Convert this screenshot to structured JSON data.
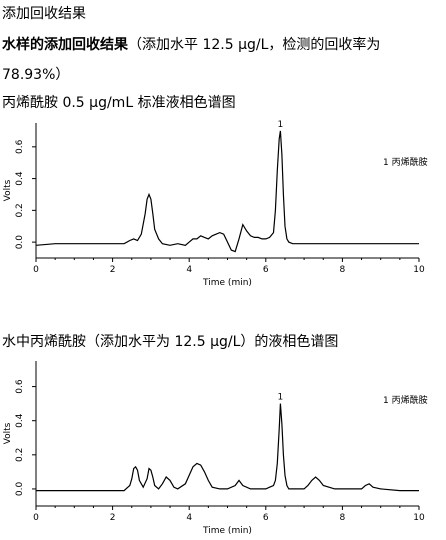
{
  "header": "添加回收结果",
  "summary": {
    "bold": "水样的添加回收结果",
    "rest": "（添加水平 12.5 μg/L，检测的回收率为",
    "line2": "78.93%）"
  },
  "captions": {
    "chart1": "丙烯酰胺 0.5 μg/mL 标准液相色谱图",
    "chart2": "水中丙烯酰胺（添加水平为 12.5 μg/L）的液相色谱图"
  },
  "chart_data": [
    {
      "type": "line",
      "xlabel": "Time (min)",
      "ylabel": "Volts",
      "xlim": [
        0,
        10
      ],
      "ylim": [
        -0.1,
        0.75
      ],
      "x_ticks": [
        0,
        2,
        4,
        6,
        8,
        10
      ],
      "y_ticks": [
        0.0,
        0.2,
        0.4,
        0.6
      ],
      "legend": "1  丙烯酰胺",
      "peak_label": "1",
      "peak": {
        "x": 6.38,
        "y": 0.7
      },
      "series": [
        {
          "x": [
            0,
            0.5,
            1,
            1.5,
            2,
            2.3,
            2.45,
            2.55,
            2.65,
            2.75,
            2.85,
            2.9,
            2.95,
            3.0,
            3.05,
            3.1,
            3.2,
            3.3,
            3.5,
            3.7,
            3.9,
            4.0,
            4.1,
            4.2,
            4.3,
            4.4,
            4.5,
            4.6,
            4.7,
            4.8,
            4.9,
            5.0,
            5.1,
            5.2,
            5.3,
            5.4,
            5.5,
            5.6,
            5.7,
            5.8,
            5.9,
            6.0,
            6.1,
            6.2,
            6.25,
            6.3,
            6.35,
            6.38,
            6.42,
            6.46,
            6.5,
            6.55,
            6.6,
            6.7,
            6.8,
            7,
            7.5,
            8,
            8.5,
            9,
            9.5,
            10
          ],
          "y": [
            -0.02,
            -0.01,
            -0.01,
            -0.01,
            -0.01,
            -0.01,
            0.01,
            0.02,
            0.01,
            0.05,
            0.18,
            0.27,
            0.3,
            0.27,
            0.18,
            0.08,
            0.02,
            -0.01,
            -0.02,
            -0.01,
            -0.02,
            0.0,
            0.02,
            0.02,
            0.04,
            0.03,
            0.02,
            0.04,
            0.05,
            0.06,
            0.05,
            0.0,
            -0.05,
            -0.06,
            0.02,
            0.11,
            0.07,
            0.04,
            0.03,
            0.03,
            0.02,
            0.02,
            0.03,
            0.06,
            0.2,
            0.45,
            0.65,
            0.7,
            0.55,
            0.3,
            0.1,
            0.02,
            0.0,
            -0.01,
            -0.01,
            -0.01,
            -0.01,
            -0.01,
            -0.01,
            -0.01,
            -0.01,
            -0.01
          ]
        }
      ]
    },
    {
      "type": "line",
      "xlabel": "Time (min)",
      "ylabel": "Volts",
      "xlim": [
        0,
        10
      ],
      "ylim": [
        -0.1,
        0.75
      ],
      "x_ticks": [
        0,
        2,
        4,
        6,
        8,
        10
      ],
      "y_ticks": [
        0.0,
        0.2,
        0.4,
        0.6
      ],
      "legend": "1  丙烯酰胺",
      "peak_label": "1",
      "peak": {
        "x": 6.38,
        "y": 0.5
      },
      "series": [
        {
          "x": [
            0,
            0.5,
            1,
            1.5,
            2,
            2.3,
            2.45,
            2.5,
            2.55,
            2.6,
            2.65,
            2.7,
            2.8,
            2.9,
            2.95,
            3.0,
            3.05,
            3.1,
            3.2,
            3.3,
            3.4,
            3.5,
            3.6,
            3.7,
            3.9,
            4.0,
            4.1,
            4.2,
            4.3,
            4.4,
            4.5,
            4.6,
            4.8,
            5.0,
            5.2,
            5.3,
            5.4,
            5.6,
            5.8,
            6.0,
            6.1,
            6.2,
            6.25,
            6.3,
            6.35,
            6.38,
            6.42,
            6.46,
            6.5,
            6.55,
            6.6,
            6.8,
            7.0,
            7.1,
            7.2,
            7.3,
            7.4,
            7.5,
            7.8,
            8.2,
            8.5,
            8.6,
            8.7,
            8.8,
            9,
            9.5,
            10
          ],
          "y": [
            -0.01,
            -0.01,
            -0.01,
            -0.01,
            -0.01,
            -0.01,
            0.02,
            0.06,
            0.12,
            0.13,
            0.11,
            0.05,
            0.01,
            0.06,
            0.12,
            0.11,
            0.07,
            0.02,
            0.0,
            0.03,
            0.07,
            0.05,
            0.01,
            0.0,
            0.03,
            0.08,
            0.13,
            0.15,
            0.14,
            0.1,
            0.05,
            0.01,
            0.0,
            0.0,
            0.02,
            0.05,
            0.02,
            0.0,
            0.0,
            0.0,
            0.01,
            0.02,
            0.05,
            0.15,
            0.35,
            0.5,
            0.38,
            0.2,
            0.08,
            0.02,
            0.0,
            0.0,
            0.0,
            0.02,
            0.05,
            0.07,
            0.05,
            0.02,
            0.0,
            0.0,
            0.0,
            0.02,
            0.03,
            0.01,
            0.0,
            -0.01,
            -0.01
          ]
        }
      ]
    }
  ]
}
